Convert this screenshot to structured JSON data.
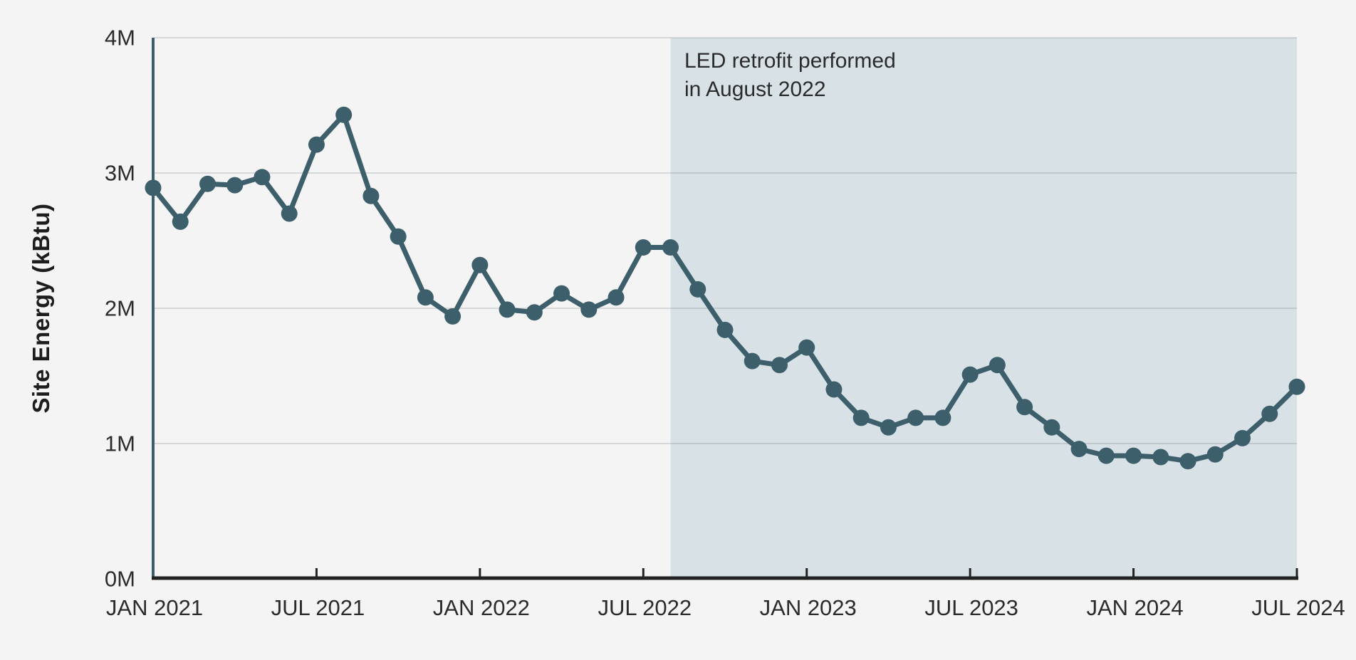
{
  "page": {
    "background_color": "#f4f4f4"
  },
  "chart": {
    "colors": {
      "series": "#3d5f6b",
      "shade": "#d8e2e6",
      "grid": "rgba(60,75,80,0.16)",
      "x_axis_line": "#222222",
      "y_axis_line": "#3d5f6b",
      "tick_text": "#2b2b2b",
      "annotation_text": "#2b2b2b"
    }
  },
  "chart_data": {
    "type": "line",
    "title": "",
    "xlabel": "",
    "ylabel": "Site Energy (kBtu)",
    "unit": "M kBtu (millions of kBtu)",
    "ylim": [
      0,
      4
    ],
    "ytick_values": [
      0,
      1,
      2,
      3,
      4
    ],
    "ytick_labels": [
      "0M",
      "1M",
      "2M",
      "3M",
      "4M"
    ],
    "xtick_indices": [
      0,
      6,
      12,
      18,
      24,
      30,
      36,
      42
    ],
    "xtick_labels": [
      "JAN 2021",
      "JUL 2021",
      "JAN 2022",
      "JUL 2022",
      "JAN 2023",
      "JUL 2023",
      "JAN 2024",
      "JUL 2024"
    ],
    "grid": "horizontal",
    "legend": "none",
    "categories": [
      "Jan 2021",
      "Feb 2021",
      "Mar 2021",
      "Apr 2021",
      "May 2021",
      "Jun 2021",
      "Jul 2021",
      "Aug 2021",
      "Sep 2021",
      "Oct 2021",
      "Nov 2021",
      "Dec 2021",
      "Jan 2022",
      "Feb 2022",
      "Mar 2022",
      "Apr 2022",
      "May 2022",
      "Jun 2022",
      "Jul 2022",
      "Aug 2022",
      "Sep 2022",
      "Oct 2022",
      "Nov 2022",
      "Dec 2022",
      "Jan 2023",
      "Feb 2023",
      "Mar 2023",
      "Apr 2023",
      "May 2023",
      "Jun 2023",
      "Jul 2023",
      "Aug 2023",
      "Sep 2023",
      "Oct 2023",
      "Nov 2023",
      "Dec 2023",
      "Jan 2024",
      "Feb 2024",
      "Mar 2024",
      "Apr 2024",
      "May 2024",
      "Jun 2024",
      "Jul 2024"
    ],
    "values_M": [
      2.89,
      2.64,
      2.92,
      2.91,
      2.97,
      2.7,
      3.21,
      3.43,
      2.83,
      2.53,
      2.08,
      1.94,
      2.32,
      1.99,
      1.97,
      2.11,
      1.99,
      2.08,
      2.45,
      2.45,
      2.14,
      1.84,
      1.61,
      1.58,
      1.71,
      1.4,
      1.19,
      1.12,
      1.19,
      1.19,
      1.51,
      1.58,
      1.27,
      1.12,
      0.96,
      0.91,
      0.91,
      0.9,
      0.87,
      0.92,
      1.04,
      1.22,
      1.42
    ],
    "shaded_region": {
      "start_category": "Aug 2022",
      "start_index": 19,
      "end_index": 42
    },
    "annotation": {
      "line1": "LED retrofit performed",
      "line2": "in August 2022"
    }
  }
}
